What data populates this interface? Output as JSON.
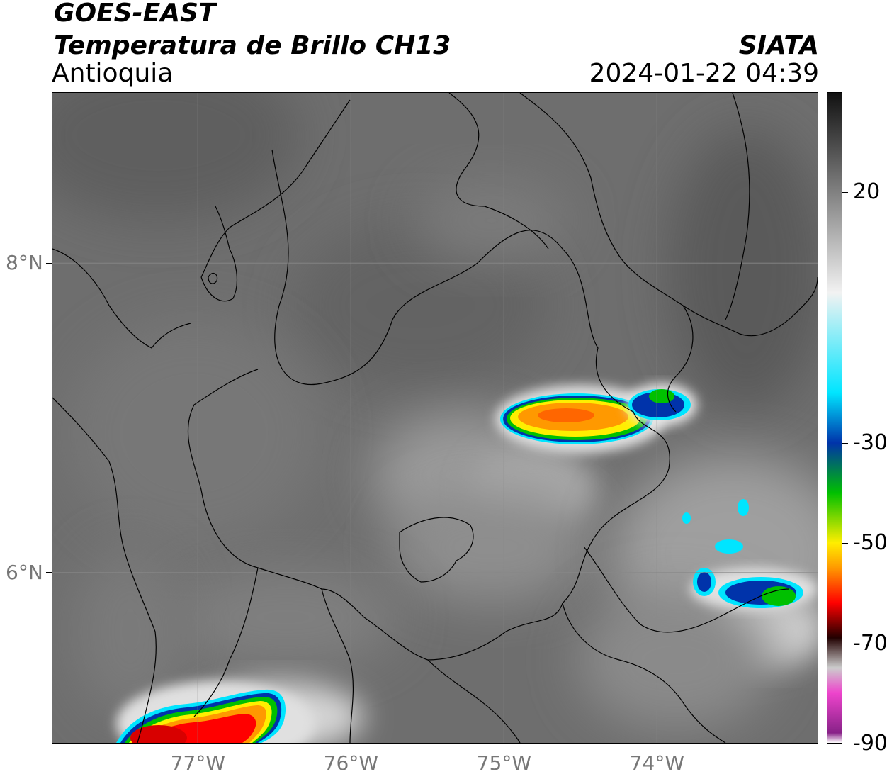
{
  "header": {
    "satellite": "GOES-EAST",
    "product": "Temperatura de Brillo CH13",
    "region": "Antioquia",
    "organization": "SIATA",
    "timestamp": "2024-01-22 04:39"
  },
  "map": {
    "lon_range": [
      -77.95,
      -72.95
    ],
    "lat_range": [
      4.9,
      9.1
    ],
    "lon_ticks": [
      {
        "value": -77,
        "label": "77°W"
      },
      {
        "value": -76,
        "label": "76°W"
      },
      {
        "value": -75,
        "label": "75°W"
      },
      {
        "value": -74,
        "label": "74°W"
      }
    ],
    "lat_ticks": [
      {
        "value": 8,
        "label": "8°N"
      },
      {
        "value": 6,
        "label": "6°N"
      }
    ],
    "grid": true,
    "background_color": "#6e6e6e"
  },
  "colorbar": {
    "range": [
      -90,
      40
    ],
    "orientation": "vertical",
    "position": "right",
    "tick_labels": [
      {
        "value": 20,
        "label": "20"
      },
      {
        "value": -30,
        "label": "-30"
      },
      {
        "value": -50,
        "label": "-50"
      },
      {
        "value": -70,
        "label": "-70"
      },
      {
        "value": -90,
        "label": "-90"
      }
    ],
    "stops": [
      {
        "value": 40,
        "color": "#111111"
      },
      {
        "value": 0,
        "color": "#f2f2f2"
      },
      {
        "value": -20,
        "color": "#00e5ff"
      },
      {
        "value": -30,
        "color": "#0033aa"
      },
      {
        "value": -40,
        "color": "#00c000"
      },
      {
        "value": -50,
        "color": "#ffee00"
      },
      {
        "value": -55,
        "color": "#ff9900"
      },
      {
        "value": -62,
        "color": "#ff0000"
      },
      {
        "value": -69,
        "color": "#220000"
      },
      {
        "value": -75,
        "color": "#cccccc"
      },
      {
        "value": -80,
        "color": "#ee44cc"
      },
      {
        "value": -88,
        "color": "#882288"
      },
      {
        "value": -90,
        "color": "#ffffff"
      }
    ]
  }
}
